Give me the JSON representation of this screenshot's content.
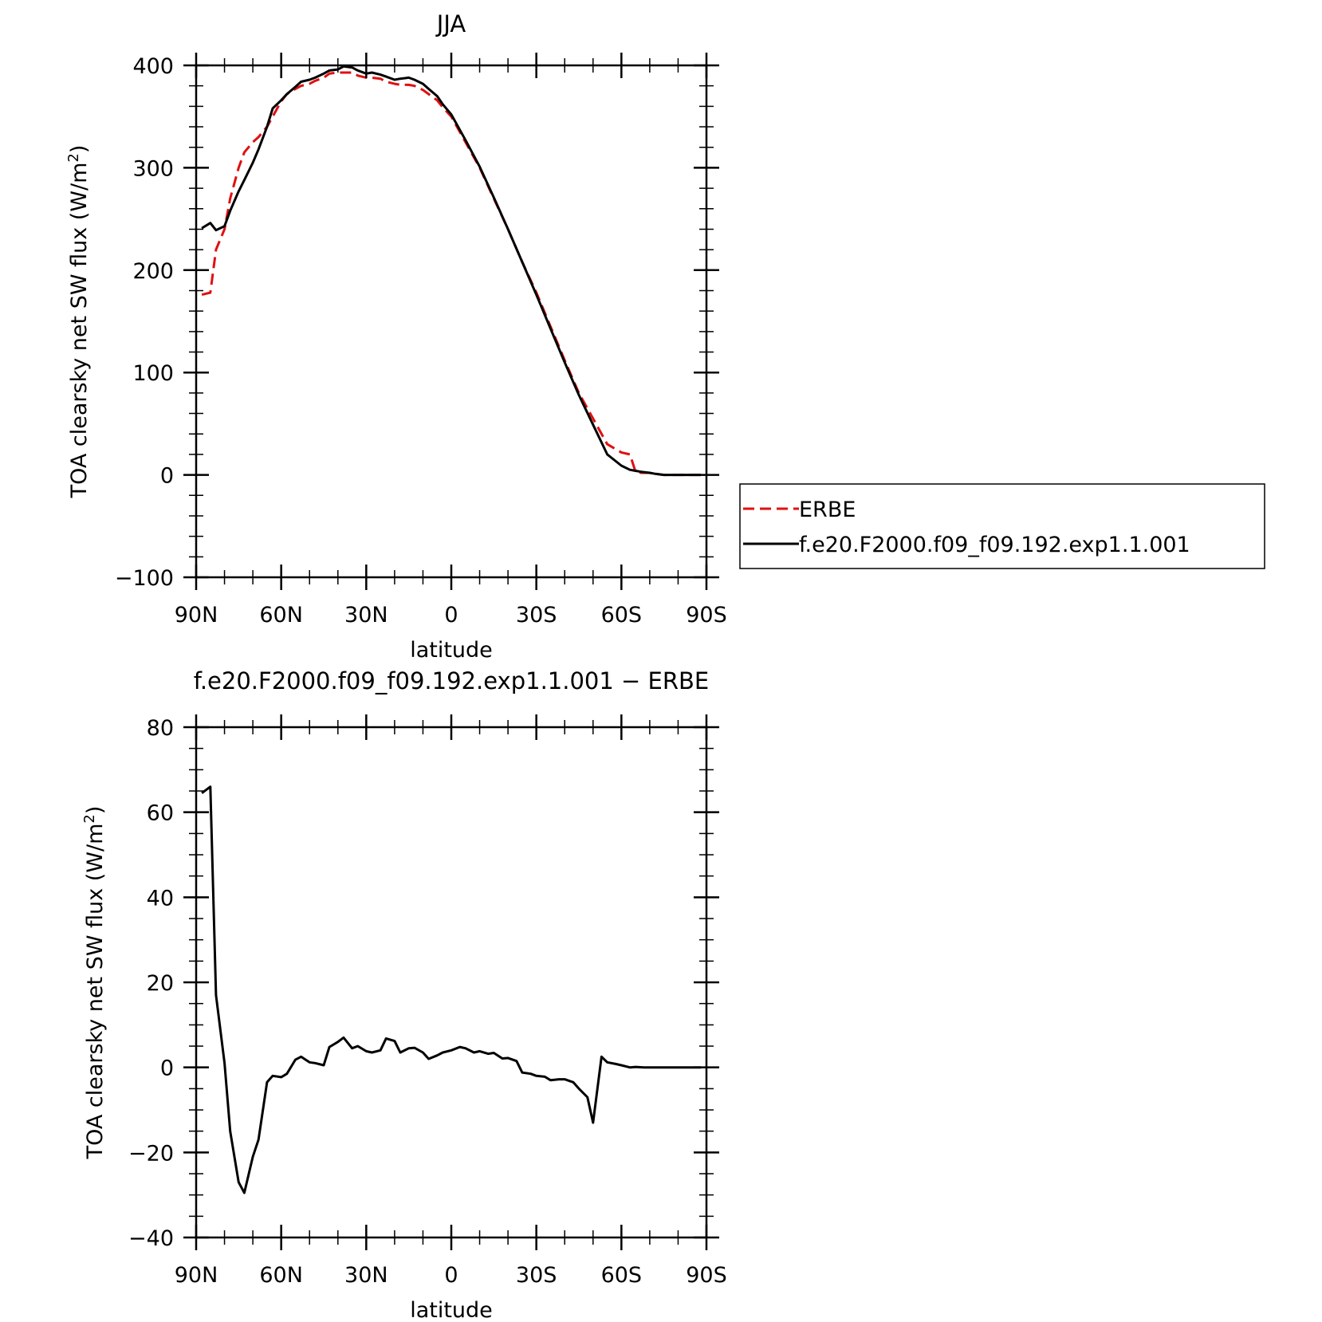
{
  "chart_data": [
    {
      "type": "line",
      "title": "JJA",
      "xlabel": "latitude",
      "ylabel": "TOA clearsky net SW flux (W/m²)",
      "ylabel_main": "TOA clearsky net SW flux (W/m",
      "ylabel_sup": "2",
      "ylabel_close": ")",
      "xlim": [
        90,
        -90
      ],
      "ylim": [
        -100,
        400
      ],
      "x_ticks": [
        90,
        60,
        30,
        0,
        -30,
        -60,
        -90
      ],
      "x_tick_labels": [
        "90N",
        "60N",
        "30N",
        "0",
        "30S",
        "60S",
        "90S"
      ],
      "y_ticks": [
        -100,
        0,
        100,
        200,
        300,
        400
      ],
      "y_tick_labels": [
        "−100",
        "0",
        "100",
        "200",
        "300",
        "400"
      ],
      "legend_placement": "right",
      "grid": false,
      "series": [
        {
          "name": "ERBE",
          "color": "#e01010",
          "dash": "dashed",
          "x": [
            88,
            85,
            83,
            80,
            78,
            75,
            73,
            70,
            68,
            65,
            63,
            60,
            58,
            55,
            53,
            50,
            48,
            45,
            43,
            40,
            38,
            35,
            33,
            30,
            28,
            25,
            23,
            20,
            18,
            15,
            13,
            10,
            8,
            5,
            3,
            0,
            -5,
            -10,
            -15,
            -20,
            -25,
            -30,
            -35,
            -40,
            -45,
            -50,
            -55,
            -60,
            -63,
            -65,
            -67,
            -70,
            -72,
            -75,
            -80,
            -85,
            -88
          ],
          "y": [
            176,
            178,
            220,
            240,
            270,
            300,
            315,
            325,
            330,
            340,
            350,
            365,
            372,
            377,
            380,
            382,
            385,
            388,
            392,
            393,
            393,
            393,
            390,
            388,
            388,
            387,
            384,
            382,
            381,
            381,
            380,
            376,
            372,
            366,
            359,
            350,
            325,
            300,
            270,
            240,
            208,
            178,
            145,
            112,
            80,
            55,
            30,
            22,
            20,
            3,
            2,
            2,
            1,
            0,
            0,
            0,
            0
          ]
        },
        {
          "name": "f.e20.F2000.f09_f09.192.exp1.1.001",
          "color": "#000000",
          "dash": "solid",
          "x": [
            88,
            85,
            83,
            80,
            78,
            75,
            73,
            70,
            68,
            65,
            63,
            60,
            58,
            55,
            53,
            50,
            48,
            45,
            43,
            40,
            38,
            35,
            33,
            30,
            28,
            25,
            23,
            20,
            18,
            15,
            13,
            10,
            8,
            5,
            3,
            0,
            -5,
            -10,
            -15,
            -20,
            -25,
            -30,
            -35,
            -40,
            -45,
            -50,
            -55,
            -60,
            -63,
            -65,
            -67,
            -70,
            -72,
            -75,
            -80,
            -85,
            -88
          ],
          "y": [
            241,
            246,
            239,
            243,
            258,
            277,
            288,
            305,
            318,
            340,
            358,
            366,
            372,
            379,
            384,
            386,
            388,
            392,
            395,
            396,
            399,
            398,
            395,
            392,
            393,
            391,
            389,
            386,
            387,
            388,
            386,
            382,
            377,
            370,
            362,
            352,
            327,
            301,
            271,
            240,
            208,
            176,
            143,
            110,
            78,
            49,
            20,
            9,
            5,
            4,
            3,
            2,
            1,
            0,
            0,
            0,
            0
          ]
        }
      ]
    },
    {
      "type": "line",
      "title": "f.e20.F2000.f09_f09.192.exp1.1.001 − ERBE",
      "xlabel": "latitude",
      "ylabel": "TOA clearsky net SW flux (W/m²)",
      "ylabel_main": "TOA clearsky net SW flux (W/m",
      "ylabel_sup": "2",
      "ylabel_close": ")",
      "xlim": [
        90,
        -90
      ],
      "ylim": [
        -40,
        80
      ],
      "x_ticks": [
        90,
        60,
        30,
        0,
        -30,
        -60,
        -90
      ],
      "x_tick_labels": [
        "90N",
        "60N",
        "30N",
        "0",
        "30S",
        "60S",
        "90S"
      ],
      "y_ticks": [
        -40,
        -20,
        0,
        20,
        40,
        60,
        80
      ],
      "y_tick_labels": [
        "−40",
        "−20",
        "0",
        "20",
        "40",
        "60",
        "80"
      ],
      "grid": false,
      "series": [
        {
          "color": "#000000",
          "dash": "solid",
          "x": [
            88,
            85,
            83,
            80,
            78,
            75,
            73,
            70,
            68,
            65,
            63,
            60,
            58,
            55,
            53,
            50,
            48,
            45,
            43,
            40,
            38,
            35,
            33,
            30,
            28,
            25,
            23,
            20,
            18,
            15,
            13,
            10,
            8,
            5,
            3,
            0,
            -3,
            -5,
            -8,
            -10,
            -13,
            -15,
            -18,
            -20,
            -23,
            -25,
            -28,
            -30,
            -33,
            -35,
            -38,
            -40,
            -43,
            -45,
            -48,
            -50,
            -53,
            -55,
            -58,
            -60,
            -63,
            -65,
            -68,
            -70,
            -73,
            -75,
            -78,
            -80,
            -83,
            -85,
            -88
          ],
          "y": [
            64.5,
            66,
            17,
            1,
            -15,
            -27,
            -29.5,
            -21,
            -17,
            -3.5,
            -2,
            -2.3,
            -1.5,
            1.8,
            2.5,
            1.2,
            1,
            0.5,
            4.8,
            6,
            7,
            4.5,
            5,
            3.8,
            3.5,
            4,
            6.8,
            6.2,
            3.5,
            4.5,
            4.6,
            3.5,
            2,
            2.8,
            3.5,
            4,
            4.8,
            4.5,
            3.5,
            3.8,
            3.2,
            3.4,
            2.1,
            2.2,
            1.5,
            -1.2,
            -1.5,
            -2,
            -2.2,
            -3,
            -2.8,
            -2.8,
            -3.5,
            -5,
            -7,
            -13,
            2.5,
            1.2,
            0.8,
            0.5,
            0,
            0.1,
            0,
            0,
            0,
            0,
            0,
            0,
            0,
            0,
            0
          ]
        }
      ]
    }
  ]
}
